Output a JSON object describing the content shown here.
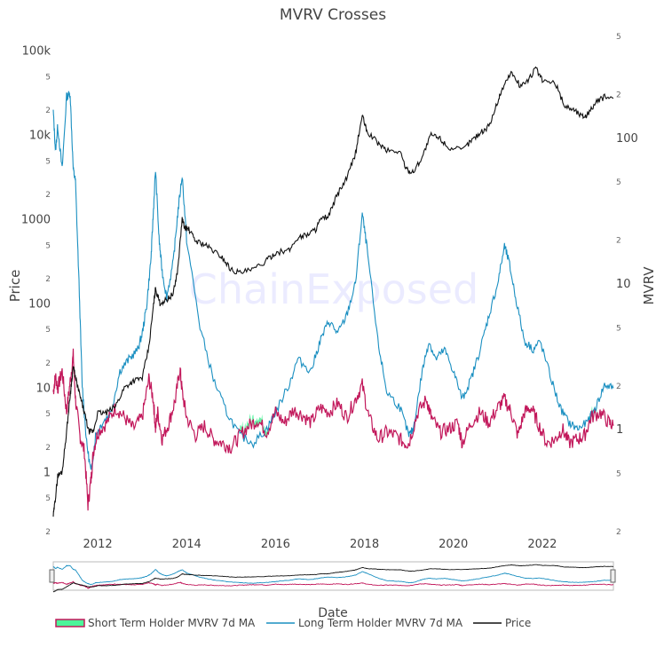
{
  "chart_data": {
    "type": "line",
    "title": "MVRV Crosses",
    "watermark": "ChainExposed",
    "xlabel": "Date",
    "ylabel_left": "Price",
    "ylabel_right": "MVRV",
    "x_range": [
      2011.0,
      2023.6
    ],
    "x_ticks": [
      "2012",
      "2014",
      "2016",
      "2018",
      "2020",
      "2022"
    ],
    "x_tick_values": [
      2012,
      2014,
      2016,
      2018,
      2020,
      2022
    ],
    "y_left": {
      "scale": "log",
      "range": [
        0.2,
        150000
      ],
      "major_ticks": [
        {
          "value": 1,
          "label": "1"
        },
        {
          "value": 10,
          "label": "10"
        },
        {
          "value": 100,
          "label": "100"
        },
        {
          "value": 1000,
          "label": "1000"
        },
        {
          "value": 10000,
          "label": "10k"
        },
        {
          "value": 100000,
          "label": "100k"
        }
      ],
      "minor_ticks": [
        {
          "value": 0.2,
          "label": "2"
        },
        {
          "value": 0.5,
          "label": "5"
        },
        {
          "value": 2,
          "label": "2"
        },
        {
          "value": 5,
          "label": "5"
        },
        {
          "value": 20,
          "label": "2"
        },
        {
          "value": 50,
          "label": "5"
        },
        {
          "value": 200,
          "label": "2"
        },
        {
          "value": 500,
          "label": "5"
        },
        {
          "value": 2000,
          "label": "2"
        },
        {
          "value": 5000,
          "label": "5"
        },
        {
          "value": 20000,
          "label": "2"
        },
        {
          "value": 50000,
          "label": "5"
        }
      ]
    },
    "y_right": {
      "scale": "log",
      "range": [
        0.2,
        500
      ],
      "major_ticks": [
        {
          "value": 1,
          "label": "1"
        },
        {
          "value": 10,
          "label": "10"
        },
        {
          "value": 100,
          "label": "100"
        }
      ],
      "minor_ticks": [
        {
          "value": 0.2,
          "label": "2"
        },
        {
          "value": 0.5,
          "label": "5"
        },
        {
          "value": 2,
          "label": "2"
        },
        {
          "value": 5,
          "label": "5"
        },
        {
          "value": 20,
          "label": "2"
        },
        {
          "value": 50,
          "label": "5"
        },
        {
          "value": 200,
          "label": "2"
        },
        {
          "value": 500,
          "label": "5"
        }
      ]
    },
    "series": [
      {
        "name": "Short Term Holder MVRV 7d MA",
        "axis": "right",
        "color": "#c2185b",
        "fill_color": "#4cf59a",
        "x": [
          2011.0,
          2011.05,
          2011.1,
          2011.2,
          2011.3,
          2011.38,
          2011.45,
          2011.5,
          2011.6,
          2011.7,
          2011.78,
          2011.85,
          2011.9,
          2012.0,
          2012.2,
          2012.4,
          2012.6,
          2012.8,
          2013.0,
          2013.15,
          2013.25,
          2013.3,
          2013.35,
          2013.45,
          2013.6,
          2013.75,
          2013.85,
          2013.9,
          2014.0,
          2014.2,
          2014.4,
          2014.6,
          2014.8,
          2015.0,
          2015.2,
          2015.4,
          2015.6,
          2015.8,
          2016.0,
          2016.2,
          2016.4,
          2016.6,
          2016.8,
          2017.0,
          2017.2,
          2017.4,
          2017.6,
          2017.8,
          2017.95,
          2018.1,
          2018.3,
          2018.5,
          2018.7,
          2018.9,
          2019.0,
          2019.2,
          2019.4,
          2019.5,
          2019.7,
          2019.9,
          2020.1,
          2020.2,
          2020.4,
          2020.6,
          2020.8,
          2021.0,
          2021.15,
          2021.3,
          2021.45,
          2021.6,
          2021.75,
          2021.9,
          2022.1,
          2022.3,
          2022.45,
          2022.6,
          2022.8,
          2022.95,
          2023.1,
          2023.3,
          2023.5,
          2023.6
        ],
        "values": [
          1.8,
          2.3,
          1.9,
          2.5,
          1.3,
          2.1,
          3.2,
          1.6,
          0.9,
          0.7,
          0.3,
          0.45,
          0.7,
          0.95,
          1.1,
          1.4,
          1.2,
          1.0,
          1.2,
          2.2,
          1.6,
          1.0,
          1.3,
          0.85,
          1.1,
          1.6,
          2.6,
          1.8,
          1.2,
          0.9,
          1.05,
          0.85,
          0.8,
          0.75,
          0.9,
          1.05,
          1.15,
          0.95,
          1.3,
          1.1,
          1.35,
          1.25,
          1.1,
          1.4,
          1.3,
          1.5,
          1.2,
          1.6,
          2.0,
          1.2,
          0.85,
          0.95,
          0.9,
          0.8,
          0.8,
          1.3,
          1.6,
          1.2,
          0.95,
          1.0,
          1.1,
          0.8,
          1.1,
          1.3,
          1.1,
          1.4,
          1.6,
          1.3,
          0.9,
          1.3,
          1.4,
          1.1,
          0.8,
          0.85,
          1.0,
          0.8,
          0.85,
          0.9,
          1.2,
          1.3,
          1.1,
          1.05
        ]
      },
      {
        "name": "Long Term Holder MVRV 7d MA",
        "axis": "right",
        "color": "#1a8fc1",
        "x": [
          2011.0,
          2011.05,
          2011.1,
          2011.2,
          2011.3,
          2011.38,
          2011.45,
          2011.5,
          2011.58,
          2011.65,
          2011.75,
          2011.85,
          2011.95,
          2012.1,
          2012.3,
          2012.5,
          2012.7,
          2012.9,
          2013.0,
          2013.1,
          2013.2,
          2013.25,
          2013.3,
          2013.38,
          2013.45,
          2013.55,
          2013.7,
          2013.8,
          2013.9,
          2014.0,
          2014.3,
          2014.6,
          2014.9,
          2015.2,
          2015.5,
          2015.8,
          2016.0,
          2016.3,
          2016.5,
          2016.8,
          2017.0,
          2017.2,
          2017.4,
          2017.6,
          2017.8,
          2017.95,
          2018.05,
          2018.3,
          2018.5,
          2018.8,
          2019.0,
          2019.1,
          2019.3,
          2019.45,
          2019.6,
          2019.8,
          2020.0,
          2020.2,
          2020.4,
          2020.6,
          2020.8,
          2021.0,
          2021.15,
          2021.25,
          2021.4,
          2021.6,
          2021.8,
          2021.95,
          2022.2,
          2022.4,
          2022.6,
          2022.8,
          2023.0,
          2023.2,
          2023.4,
          2023.6
        ],
        "values": [
          150,
          80,
          120,
          60,
          190,
          200,
          60,
          50,
          10,
          2,
          0.8,
          0.5,
          0.9,
          1.1,
          1.3,
          2.5,
          3.0,
          3.5,
          4.5,
          7,
          15,
          30,
          60,
          20,
          12,
          8,
          14,
          30,
          55,
          20,
          5,
          2.2,
          1.3,
          0.9,
          0.8,
          1.0,
          1.3,
          2.0,
          3.0,
          2.5,
          4.0,
          5.5,
          4.5,
          6,
          10,
          30,
          18,
          4,
          1.8,
          1.4,
          0.9,
          1.0,
          2.5,
          4.0,
          3.0,
          3.5,
          2.5,
          1.6,
          2.2,
          3.5,
          6,
          10,
          18,
          14,
          8,
          4,
          3.5,
          4,
          2.2,
          1.4,
          1.1,
          1.0,
          1.1,
          1.4,
          2.0,
          1.9
        ]
      },
      {
        "name": "Price",
        "axis": "left",
        "color": "#111111",
        "x": [
          2011.0,
          2011.05,
          2011.1,
          2011.2,
          2011.3,
          2011.38,
          2011.45,
          2011.5,
          2011.6,
          2011.7,
          2011.8,
          2011.9,
          2012.0,
          2012.2,
          2012.4,
          2012.6,
          2012.8,
          2013.0,
          2013.15,
          2013.25,
          2013.3,
          2013.4,
          2013.55,
          2013.7,
          2013.8,
          2013.9,
          2013.95,
          2014.05,
          2014.2,
          2014.4,
          2014.6,
          2014.8,
          2015.0,
          2015.2,
          2015.5,
          2015.8,
          2016.0,
          2016.3,
          2016.5,
          2016.7,
          2016.9,
          2017.0,
          2017.2,
          2017.4,
          2017.6,
          2017.8,
          2017.95,
          2018.05,
          2018.3,
          2018.5,
          2018.8,
          2018.95,
          2019.1,
          2019.3,
          2019.5,
          2019.7,
          2019.9,
          2020.2,
          2020.4,
          2020.6,
          2020.8,
          2021.0,
          2021.1,
          2021.3,
          2021.5,
          2021.7,
          2021.85,
          2022.0,
          2022.3,
          2022.5,
          2022.7,
          2022.9,
          2023.0,
          2023.2,
          2023.4,
          2023.6
        ],
        "values": [
          0.3,
          0.5,
          0.9,
          1.0,
          3,
          8,
          18,
          13,
          8,
          5,
          3,
          3,
          5,
          5,
          6,
          10,
          12,
          13,
          30,
          90,
          150,
          100,
          110,
          130,
          250,
          1000,
          800,
          750,
          550,
          500,
          420,
          350,
          250,
          230,
          250,
          320,
          400,
          420,
          600,
          650,
          750,
          950,
          1100,
          2000,
          3000,
          6000,
          17000,
          11000,
          8000,
          6500,
          6300,
          3800,
          3600,
          5500,
          10000,
          9000,
          7000,
          6500,
          8500,
          10500,
          12500,
          25000,
          35000,
          55000,
          38000,
          45000,
          62000,
          44000,
          40000,
          22000,
          20000,
          16500,
          17000,
          24000,
          28000,
          27000
        ]
      }
    ]
  },
  "legend": {
    "stmvrv_label": "Short Term Holder MVRV 7d MA",
    "ltmvrv_label": "Long Term Holder MVRV 7d MA",
    "price_label": "Price"
  }
}
